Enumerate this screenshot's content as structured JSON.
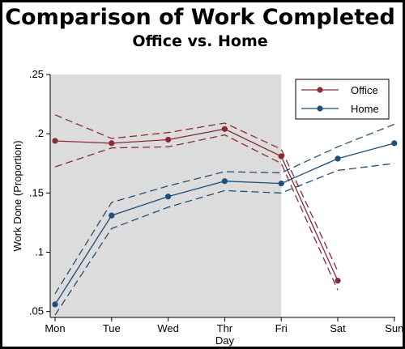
{
  "title": "Comparison of Work Completed",
  "subtitle": "Office vs. Home",
  "chart_data": {
    "type": "line",
    "title": "Comparison of Work Completed",
    "subtitle": "Office vs. Home",
    "xlabel": "Day",
    "ylabel": "Work Done (Proportion)",
    "categories": [
      "Mon",
      "Tue",
      "Wed",
      "Thr",
      "Fri",
      "Sat",
      "Sun"
    ],
    "ylim": [
      0.045,
      0.25
    ],
    "yticks": [
      0.05,
      0.1,
      0.15,
      0.2,
      0.25
    ],
    "ytick_labels": [
      ".05",
      ".1",
      ".15",
      ".2",
      ".25"
    ],
    "shaded_region": {
      "from": "Mon",
      "to": "Fri",
      "color": "#dcdcdc"
    },
    "legend": {
      "position": "top-right",
      "entries": [
        "Office",
        "Home"
      ]
    },
    "series": [
      {
        "name": "Office",
        "color": "#8b2a35",
        "values": [
          0.194,
          0.192,
          0.195,
          0.204,
          0.181,
          0.076,
          null
        ],
        "upper": [
          0.216,
          0.196,
          0.201,
          0.209,
          0.187,
          0.084,
          null
        ],
        "lower": [
          0.172,
          0.188,
          0.189,
          0.199,
          0.175,
          0.068,
          null
        ]
      },
      {
        "name": "Home",
        "color": "#1f4e79",
        "values": [
          0.056,
          0.131,
          0.147,
          0.16,
          0.158,
          0.179,
          0.192
        ],
        "upper": [
          0.065,
          0.142,
          0.156,
          0.168,
          0.167,
          0.189,
          0.208
        ],
        "lower": [
          0.047,
          0.12,
          0.138,
          0.152,
          0.15,
          0.169,
          0.175
        ]
      }
    ]
  }
}
